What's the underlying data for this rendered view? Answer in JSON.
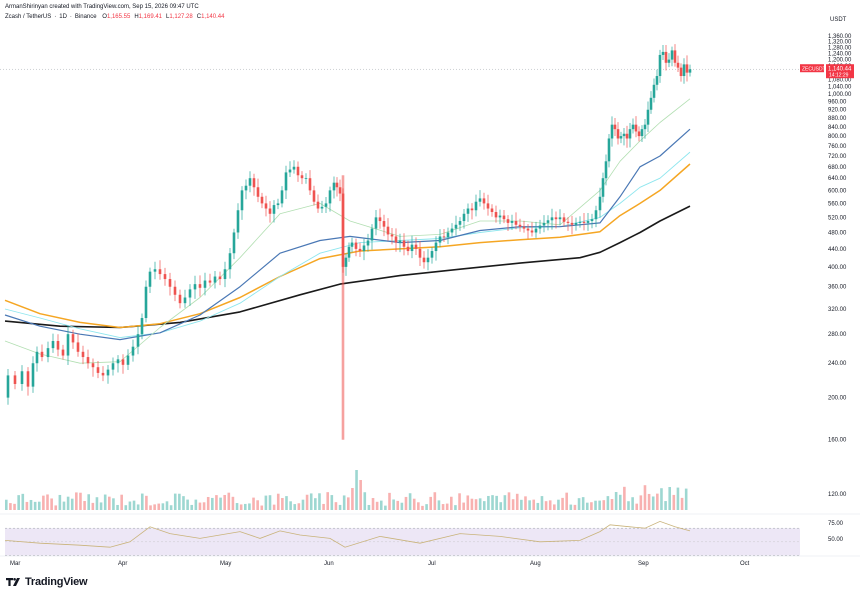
{
  "header": {
    "credit": "ArmanShirinyan created with TradingView.com, Sep 15, 2026 09:47 UTC",
    "symbol": "Zcash / TetherUS",
    "interval": "1D",
    "exchange": "Binance",
    "ohlc": [
      {
        "key": "O",
        "value": "1,165.55"
      },
      {
        "key": "H",
        "value": "1,169.41"
      },
      {
        "key": "L",
        "value": "1,127.28"
      },
      {
        "key": "C",
        "value": "1,140.44"
      }
    ]
  },
  "price_axis": {
    "currency": "USDT",
    "tick_labels": [
      "1,360.00",
      "1,320.00",
      "1,280.00",
      "1,240.00",
      "1,200.00",
      "1,160.00",
      "1,080.00",
      "1,040.00",
      "1,000.00",
      "960.00",
      "920.00",
      "880.00",
      "840.00",
      "800.00",
      "760.00",
      "720.00",
      "680.00",
      "640.00",
      "600.00",
      "560.00",
      "520.00",
      "480.00",
      "440.00",
      "400.00",
      "360.00",
      "320.00",
      "280.00",
      "240.00",
      "200.00",
      "160.00",
      "120.00"
    ],
    "last_price_tag": {
      "symbol": "ZECUSDT",
      "price": "1,140.44",
      "countdown": "14:12:29"
    }
  },
  "rsi_axis": {
    "tick_labels": [
      "75.00",
      "50.00"
    ]
  },
  "time_axis": {
    "months": [
      "Mar",
      "Apr",
      "May",
      "Jun",
      "Jul",
      "Aug",
      "Sep",
      "Oct"
    ]
  },
  "colors": {
    "up": "#26a69a",
    "down": "#ef5350",
    "ma_fast": "#b2dfb2",
    "ma_blue": "#4a78b5",
    "ma_cyan": "#8ee6ee",
    "ma_orange": "#f5a623",
    "ma_black": "#1a1a1a",
    "rsi_line": "#c9b37a",
    "rsi_band": "#ede7f6",
    "last_tag": "#f23645"
  },
  "logo": {
    "text": "TradingView"
  },
  "chart_data": {
    "type": "candlestick",
    "scale": "log",
    "y_range": [
      120,
      1360
    ],
    "price_series": [
      [
        1,
        200
      ],
      [
        8,
        225
      ],
      [
        15,
        215
      ],
      [
        22,
        230
      ],
      [
        28,
        212
      ],
      [
        33,
        240
      ],
      [
        37,
        255
      ],
      [
        42,
        248
      ],
      [
        48,
        260
      ],
      [
        53,
        270
      ],
      [
        58,
        258
      ],
      [
        63,
        250
      ],
      [
        68,
        280
      ],
      [
        73,
        268
      ],
      [
        78,
        255
      ],
      [
        83,
        248
      ],
      [
        88,
        240
      ],
      [
        93,
        235
      ],
      [
        98,
        228
      ],
      [
        103,
        225
      ],
      [
        108,
        232
      ],
      [
        113,
        240
      ],
      [
        118,
        245
      ],
      [
        123,
        238
      ],
      [
        128,
        250
      ],
      [
        133,
        262
      ],
      [
        138,
        280
      ],
      [
        142,
        305
      ],
      [
        146,
        360
      ],
      [
        150,
        390
      ],
      [
        155,
        395
      ],
      [
        160,
        385
      ],
      [
        165,
        375
      ],
      [
        170,
        360
      ],
      [
        175,
        345
      ],
      [
        180,
        330
      ],
      [
        185,
        340
      ],
      [
        190,
        355
      ],
      [
        195,
        365
      ],
      [
        200,
        358
      ],
      [
        205,
        372
      ],
      [
        210,
        368
      ],
      [
        215,
        380
      ],
      [
        220,
        375
      ],
      [
        225,
        395
      ],
      [
        230,
        430
      ],
      [
        234,
        480
      ],
      [
        238,
        540
      ],
      [
        242,
        600
      ],
      [
        246,
        615
      ],
      [
        250,
        640
      ],
      [
        254,
        610
      ],
      [
        258,
        580
      ],
      [
        262,
        560
      ],
      [
        266,
        545
      ],
      [
        270,
        530
      ],
      [
        274,
        555
      ],
      [
        278,
        560
      ],
      [
        282,
        600
      ],
      [
        286,
        660
      ],
      [
        290,
        670
      ],
      [
        294,
        680
      ],
      [
        298,
        650
      ],
      [
        302,
        640
      ],
      [
        306,
        640
      ],
      [
        310,
        600
      ],
      [
        314,
        565
      ],
      [
        318,
        545
      ],
      [
        322,
        550
      ],
      [
        326,
        560
      ],
      [
        330,
        600
      ],
      [
        334,
        625
      ],
      [
        337,
        610
      ],
      [
        340,
        590
      ],
      [
        343,
        400
      ],
      [
        346,
        420
      ],
      [
        349,
        445
      ],
      [
        352,
        455
      ],
      [
        356,
        440
      ],
      [
        360,
        435
      ],
      [
        364,
        448
      ],
      [
        368,
        460
      ],
      [
        372,
        490
      ],
      [
        376,
        520
      ],
      [
        380,
        510
      ],
      [
        384,
        495
      ],
      [
        388,
        475
      ],
      [
        392,
        470
      ],
      [
        396,
        455
      ],
      [
        400,
        460
      ],
      [
        404,
        445
      ],
      [
        408,
        435
      ],
      [
        412,
        450
      ],
      [
        416,
        440
      ],
      [
        420,
        420
      ],
      [
        424,
        410
      ],
      [
        428,
        420
      ],
      [
        432,
        435
      ],
      [
        436,
        455
      ],
      [
        440,
        470
      ],
      [
        444,
        468
      ],
      [
        448,
        480
      ],
      [
        452,
        490
      ],
      [
        456,
        500
      ],
      [
        460,
        510
      ],
      [
        464,
        530
      ],
      [
        468,
        545
      ],
      [
        472,
        540
      ],
      [
        476,
        565
      ],
      [
        480,
        575
      ],
      [
        484,
        560
      ],
      [
        488,
        545
      ],
      [
        492,
        535
      ],
      [
        496,
        520
      ],
      [
        500,
        525
      ],
      [
        504,
        515
      ],
      [
        508,
        505
      ],
      [
        512,
        510
      ],
      [
        516,
        500
      ],
      [
        520,
        495
      ],
      [
        524,
        490
      ],
      [
        528,
        485
      ],
      [
        532,
        480
      ],
      [
        536,
        490
      ],
      [
        540,
        498
      ],
      [
        544,
        505
      ],
      [
        548,
        512
      ],
      [
        552,
        520
      ],
      [
        556,
        515
      ],
      [
        560,
        520
      ],
      [
        564,
        508
      ],
      [
        568,
        505
      ],
      [
        572,
        500
      ],
      [
        576,
        505
      ],
      [
        580,
        508
      ],
      [
        584,
        505
      ],
      [
        588,
        510
      ],
      [
        592,
        515
      ],
      [
        596,
        540
      ],
      [
        600,
        580
      ],
      [
        603,
        640
      ],
      [
        606,
        700
      ],
      [
        609,
        790
      ],
      [
        612,
        850
      ],
      [
        615,
        830
      ],
      [
        618,
        790
      ],
      [
        621,
        800
      ],
      [
        624,
        810
      ],
      [
        627,
        790
      ],
      [
        630,
        830
      ],
      [
        633,
        850
      ],
      [
        636,
        820
      ],
      [
        639,
        800
      ],
      [
        642,
        830
      ],
      [
        645,
        850
      ],
      [
        648,
        920
      ],
      [
        651,
        980
      ],
      [
        654,
        1050
      ],
      [
        657,
        1100
      ],
      [
        660,
        1230
      ],
      [
        663,
        1250
      ],
      [
        666,
        1180
      ],
      [
        669,
        1200
      ],
      [
        672,
        1260
      ],
      [
        675,
        1180
      ],
      [
        678,
        1150
      ],
      [
        681,
        1100
      ],
      [
        684,
        1170
      ],
      [
        687,
        1120
      ],
      [
        690,
        1140
      ]
    ],
    "moving_averages": [
      {
        "key": "ma_black",
        "points": [
          [
            5,
            300
          ],
          [
            60,
            292
          ],
          [
            120,
            290
          ],
          [
            180,
            298
          ],
          [
            240,
            315
          ],
          [
            300,
            345
          ],
          [
            340,
            365
          ],
          [
            400,
            382
          ],
          [
            460,
            395
          ],
          [
            520,
            408
          ],
          [
            580,
            420
          ],
          [
            600,
            432
          ],
          [
            620,
            455
          ],
          [
            640,
            480
          ],
          [
            660,
            510
          ],
          [
            690,
            552
          ]
        ]
      },
      {
        "key": "ma_orange",
        "points": [
          [
            5,
            335
          ],
          [
            40,
            312
          ],
          [
            80,
            298
          ],
          [
            120,
            290
          ],
          [
            160,
            296
          ],
          [
            200,
            312
          ],
          [
            240,
            340
          ],
          [
            280,
            380
          ],
          [
            320,
            418
          ],
          [
            360,
            435
          ],
          [
            400,
            440
          ],
          [
            440,
            445
          ],
          [
            480,
            455
          ],
          [
            520,
            462
          ],
          [
            560,
            468
          ],
          [
            600,
            482
          ],
          [
            620,
            525
          ],
          [
            640,
            560
          ],
          [
            660,
            600
          ],
          [
            690,
            690
          ]
        ]
      },
      {
        "key": "ma_cyan",
        "points": [
          [
            5,
            320
          ],
          [
            40,
            305
          ],
          [
            80,
            288
          ],
          [
            120,
            275
          ],
          [
            160,
            282
          ],
          [
            200,
            300
          ],
          [
            240,
            330
          ],
          [
            280,
            380
          ],
          [
            320,
            430
          ],
          [
            360,
            455
          ],
          [
            400,
            460
          ],
          [
            440,
            465
          ],
          [
            480,
            480
          ],
          [
            520,
            492
          ],
          [
            560,
            495
          ],
          [
            600,
            520
          ],
          [
            620,
            560
          ],
          [
            640,
            610
          ],
          [
            660,
            640
          ],
          [
            690,
            735
          ]
        ]
      },
      {
        "key": "ma_blue",
        "points": [
          [
            5,
            310
          ],
          [
            40,
            292
          ],
          [
            80,
            280
          ],
          [
            120,
            272
          ],
          [
            160,
            282
          ],
          [
            200,
            310
          ],
          [
            240,
            360
          ],
          [
            280,
            430
          ],
          [
            320,
            460
          ],
          [
            350,
            470
          ],
          [
            400,
            455
          ],
          [
            440,
            460
          ],
          [
            480,
            485
          ],
          [
            520,
            495
          ],
          [
            560,
            495
          ],
          [
            600,
            505
          ],
          [
            620,
            580
          ],
          [
            640,
            680
          ],
          [
            660,
            720
          ],
          [
            690,
            830
          ]
        ]
      },
      {
        "key": "ma_fast",
        "points": [
          [
            5,
            270
          ],
          [
            40,
            252
          ],
          [
            80,
            240
          ],
          [
            120,
            242
          ],
          [
            160,
            290
          ],
          [
            200,
            340
          ],
          [
            240,
            420
          ],
          [
            280,
            530
          ],
          [
            320,
            560
          ],
          [
            350,
            510
          ],
          [
            400,
            470
          ],
          [
            440,
            475
          ],
          [
            480,
            510
          ],
          [
            520,
            510
          ],
          [
            560,
            500
          ],
          [
            600,
            600
          ],
          [
            620,
            700
          ],
          [
            640,
            780
          ],
          [
            660,
            860
          ],
          [
            690,
            975
          ]
        ]
      }
    ],
    "volume": {
      "base_count": 166,
      "spikes": [
        {
          "index": 85,
          "height": 1.0
        },
        {
          "index": 86,
          "height": 0.75
        },
        {
          "index": 84,
          "height": 0.55
        },
        {
          "index": 148,
          "height": 0.45
        },
        {
          "index": 149,
          "height": 0.38
        }
      ]
    },
    "rsi": {
      "y_range": [
        35,
        85
      ],
      "upper": 70,
      "lower": 30,
      "points": [
        [
          5,
          52
        ],
        [
          40,
          48
        ],
        [
          80,
          45
        ],
        [
          110,
          42
        ],
        [
          130,
          50
        ],
        [
          150,
          72
        ],
        [
          170,
          62
        ],
        [
          200,
          55
        ],
        [
          240,
          65
        ],
        [
          260,
          55
        ],
        [
          280,
          66
        ],
        [
          300,
          60
        ],
        [
          330,
          55
        ],
        [
          345,
          42
        ],
        [
          380,
          58
        ],
        [
          420,
          48
        ],
        [
          460,
          62
        ],
        [
          500,
          58
        ],
        [
          540,
          50
        ],
        [
          580,
          52
        ],
        [
          600,
          65
        ],
        [
          610,
          75
        ],
        [
          630,
          72
        ],
        [
          645,
          70
        ],
        [
          660,
          80
        ],
        [
          675,
          72
        ],
        [
          690,
          66
        ]
      ]
    }
  }
}
